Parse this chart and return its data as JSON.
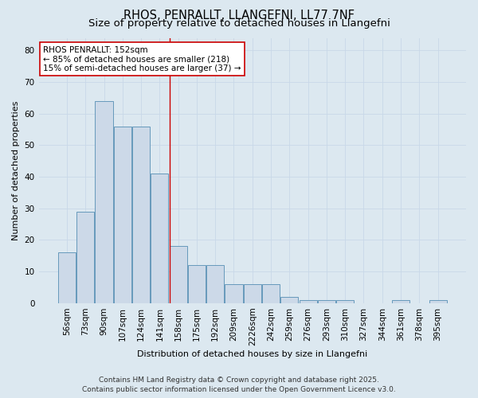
{
  "title": "RHOS, PENRALLT, LLANGEFNI, LL77 7NF",
  "subtitle": "Size of property relative to detached houses in Llangefni",
  "xlabel": "Distribution of detached houses by size in Llangefni",
  "ylabel": "Number of detached properties",
  "categories": [
    "56sqm",
    "73sqm",
    "90sqm",
    "107sqm",
    "124sqm",
    "141sqm",
    "158sqm",
    "175sqm",
    "192sqm",
    "209sqm",
    "2226sqm",
    "242sqm",
    "259sqm",
    "276sqm",
    "293sqm",
    "310sqm",
    "327sqm",
    "344sqm",
    "361sqm",
    "378sqm",
    "395sqm"
  ],
  "values": [
    16,
    29,
    64,
    56,
    56,
    41,
    18,
    12,
    12,
    6,
    6,
    6,
    2,
    1,
    1,
    1,
    0,
    0,
    1,
    0,
    1
  ],
  "bar_color": "#ccd9e8",
  "bar_edge_color": "#6699bb",
  "vline_color": "#cc0000",
  "vline_pos": 6,
  "annotation_text": "RHOS PENRALLT: 152sqm\n← 85% of detached houses are smaller (218)\n15% of semi-detached houses are larger (37) →",
  "annotation_box_facecolor": "#ffffff",
  "annotation_box_edgecolor": "#cc0000",
  "ylim": [
    0,
    84
  ],
  "yticks": [
    0,
    10,
    20,
    30,
    40,
    50,
    60,
    70,
    80
  ],
  "grid_color": "#c8d8e8",
  "background_color": "#dce8f0",
  "footer_line1": "Contains HM Land Registry data © Crown copyright and database right 2025.",
  "footer_line2": "Contains public sector information licensed under the Open Government Licence v3.0.",
  "title_fontsize": 10.5,
  "subtitle_fontsize": 9.5,
  "axis_label_fontsize": 8,
  "tick_fontsize": 7.5,
  "footer_fontsize": 6.5,
  "annotation_fontsize": 7.5
}
